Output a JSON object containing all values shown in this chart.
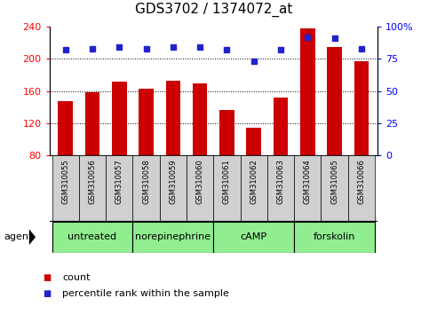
{
  "title": "GDS3702 / 1374072_at",
  "samples": [
    "GSM310055",
    "GSM310056",
    "GSM310057",
    "GSM310058",
    "GSM310059",
    "GSM310060",
    "GSM310061",
    "GSM310062",
    "GSM310063",
    "GSM310064",
    "GSM310065",
    "GSM310066"
  ],
  "counts": [
    148,
    158,
    172,
    163,
    173,
    170,
    137,
    114,
    152,
    238,
    215,
    197
  ],
  "percentiles": [
    82,
    83,
    84,
    83,
    84,
    84,
    82,
    73,
    82,
    92,
    91,
    83
  ],
  "bar_color": "#cc0000",
  "dot_color": "#2222cc",
  "ylim_left": [
    80,
    240
  ],
  "ylim_right": [
    0,
    100
  ],
  "yticks_left": [
    80,
    120,
    160,
    200,
    240
  ],
  "yticks_right": [
    0,
    25,
    50,
    75,
    100
  ],
  "ytick_labels_right": [
    "0",
    "25",
    "50",
    "75",
    "100%"
  ],
  "agent_groups": [
    {
      "label": "untreated",
      "start": 0,
      "end": 3
    },
    {
      "label": "norepinephrine",
      "start": 3,
      "end": 6
    },
    {
      "label": "cAMP",
      "start": 6,
      "end": 9
    },
    {
      "label": "forskolin",
      "start": 9,
      "end": 12
    }
  ],
  "agent_label": "agent",
  "agent_bg_color": "#90ee90",
  "agent_bg_dark": "#5cb85c",
  "sample_bg_color": "#d0d0d0",
  "legend_count_label": "count",
  "legend_percentile_label": "percentile rank within the sample",
  "bar_width": 0.55,
  "title_fontsize": 11,
  "tick_fontsize": 8,
  "sample_fontsize": 6,
  "agent_fontsize": 8
}
